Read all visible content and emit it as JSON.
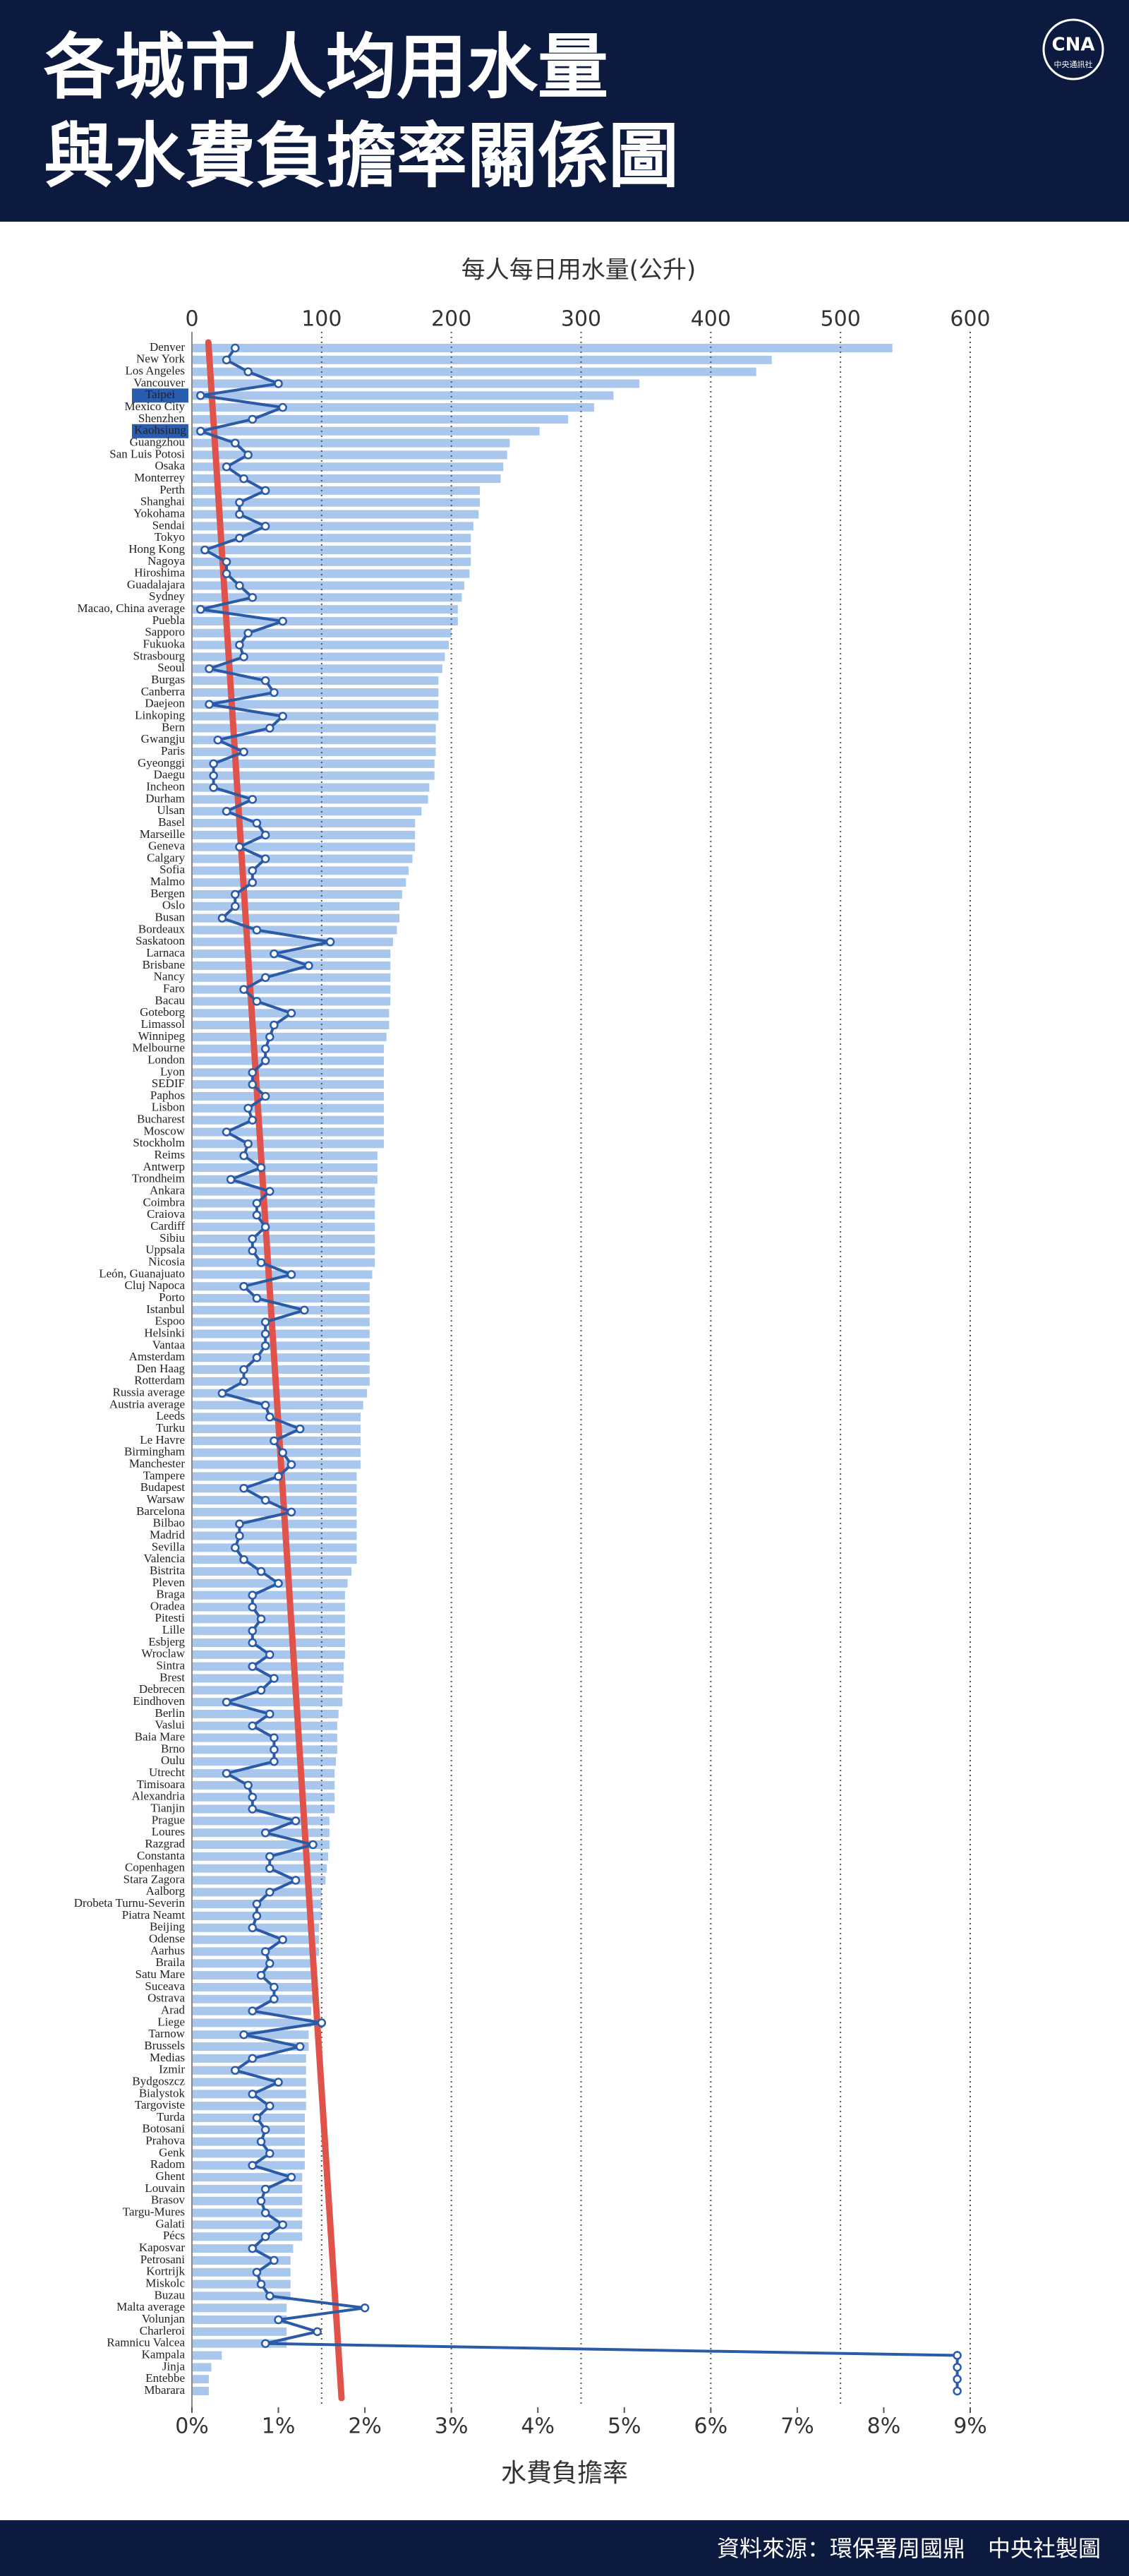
{
  "header": {
    "title_lines": [
      "各城市人均用水量",
      "與水費負擔率關係圖"
    ],
    "logo": "CNA",
    "logo_sub": "中央通訊社"
  },
  "footer": {
    "source": "資料來源：環保署周國鼎　中央社製圖"
  },
  "chart_data": {
    "type": "bar_line",
    "categories": [
      "Denver",
      "New York",
      "Los Angeles",
      "Vancouver",
      "Taipei",
      "Mexico City",
      "Shenzhen",
      "Kaohsiung",
      "Guangzhou",
      "San Luis Potosi",
      "Osaka",
      "Monterrey",
      "Perth",
      "Shanghai",
      "Yokohama",
      "Sendai",
      "Tokyo",
      "Hong Kong",
      "Nagoya",
      "Hiroshima",
      "Guadalajara",
      "Sydney",
      "Macao, China average",
      "Puebla",
      "Sapporo",
      "Fukuoka",
      "Strasbourg",
      "Seoul",
      "Burgas",
      "Canberra",
      "Daejeon",
      "Linkoping",
      "Bern",
      "Gwangju",
      "Paris",
      "Gyeonggi",
      "Daegu",
      "Incheon",
      "Durham",
      "Ulsan",
      "Basel",
      "Marseille",
      "Geneva",
      "Calgary",
      "Sofia",
      "Malmo",
      "Bergen",
      "Oslo",
      "Busan",
      "Bordeaux",
      "Saskatoon",
      "Larnaca",
      "Brisbane",
      "Nancy",
      "Faro",
      "Bacau",
      "Goteborg",
      "Limassol",
      "Winnipeg",
      "Melbourne",
      "London",
      "Lyon",
      "SEDIF",
      "Paphos",
      "Lisbon",
      "Bucharest",
      "Moscow",
      "Stockholm",
      "Reims",
      "Antwerp",
      "Trondheim",
      "Ankara",
      "Coimbra",
      "Craiova",
      "Cardiff",
      "Sibiu",
      "Uppsala",
      "Nicosia",
      "León, Guanajuato",
      "Cluj Napoca",
      "Porto",
      "Istanbul",
      "Espoo",
      "Helsinki",
      "Vantaa",
      "Amsterdam",
      "Den Haag",
      "Rotterdam",
      "Russia average",
      "Austria average",
      "Leeds",
      "Turku",
      "Le Havre",
      "Birmingham",
      "Manchester",
      "Tampere",
      "Budapest",
      "Warsaw",
      "Barcelona",
      "Bilbao",
      "Madrid",
      "Sevilla",
      "Valencia",
      "Bistrita",
      "Pleven",
      "Braga",
      "Oradea",
      "Pitesti",
      "Lille",
      "Esbjerg",
      "Wroclaw",
      "Sintra",
      "Brest",
      "Debrecen",
      "Eindhoven",
      "Berlin",
      "Vaslui",
      "Baia Mare",
      "Brno",
      "Oulu",
      "Utrecht",
      "Timisoara",
      "Alexandria",
      "Tianjin",
      "Prague",
      "Loures",
      "Razgrad",
      "Constanta",
      "Copenhagen",
      "Stara Zagora",
      "Aalborg",
      "Drobeta Turnu-Severin",
      "Piatra Neamt",
      "Beijing",
      "Odense",
      "Aarhus",
      "Braila",
      "Satu Mare",
      "Suceava",
      "Ostrava",
      "Arad",
      "Liege",
      "Tarnow",
      "Brussels",
      "Medias",
      "Izmir",
      "Bydgoszcz",
      "Bialystok",
      "Targoviste",
      "Turda",
      "Botosani",
      "Prahova",
      "Genk",
      "Radom",
      "Ghent",
      "Louvain",
      "Brasov",
      "Targu-Mures",
      "Galati",
      "Pécs",
      "Kaposvar",
      "Petrosani",
      "Kortrijk",
      "Miskolc",
      "Buzau",
      "Malta average",
      "Volunjan",
      "Charleroi",
      "Ramnicu Valcea",
      "Kampala",
      "Jinja",
      "Entebbe",
      "Mbarara"
    ],
    "highlight": [
      "Taipei",
      "Kaohsiung"
    ],
    "water": {
      "axis_label": "每人每日用水量(公升)",
      "color": "#a9c6ec",
      "values": [
        540,
        447,
        435,
        345,
        325,
        310,
        290,
        268,
        245,
        243,
        240,
        238,
        222,
        222,
        221,
        217,
        215,
        215,
        215,
        214,
        210,
        208,
        205,
        205,
        200,
        198,
        195,
        193,
        190,
        190,
        190,
        190,
        188,
        188,
        188,
        187,
        187,
        183,
        182,
        177,
        172,
        172,
        172,
        170,
        167,
        165,
        162,
        160,
        160,
        158,
        155,
        153,
        153,
        153,
        153,
        153,
        152,
        152,
        150,
        148,
        148,
        148,
        148,
        148,
        148,
        148,
        148,
        148,
        143,
        143,
        143,
        141,
        141,
        141,
        141,
        141,
        141,
        141,
        139,
        137,
        137,
        137,
        137,
        137,
        137,
        137,
        137,
        137,
        135,
        132,
        130,
        130,
        130,
        130,
        130,
        127,
        127,
        127,
        127,
        127,
        127,
        127,
        127,
        123,
        120,
        118,
        118,
        118,
        118,
        118,
        118,
        117,
        117,
        116,
        116,
        113,
        112,
        112,
        112,
        111,
        110,
        110,
        110,
        110,
        106,
        106,
        106,
        105,
        104,
        103,
        100,
        100,
        100,
        98,
        98,
        98,
        93,
        93,
        93,
        93,
        92,
        92,
        90,
        90,
        88,
        88,
        88,
        88,
        88,
        87,
        87,
        87,
        87,
        87,
        85,
        85,
        85,
        85,
        85,
        85,
        78,
        76,
        76,
        76,
        76,
        73,
        73,
        73,
        73,
        23,
        15,
        13,
        13
      ]
    },
    "burden": {
      "axis_label": "水費負擔率",
      "color": "#2b5aa6",
      "values": [
        0.5,
        0.4,
        0.65,
        1.0,
        0.1,
        1.05,
        0.7,
        0.1,
        0.5,
        0.65,
        0.4,
        0.6,
        0.85,
        0.55,
        0.55,
        0.85,
        0.55,
        0.15,
        0.4,
        0.4,
        0.55,
        0.7,
        0.1,
        1.05,
        0.65,
        0.55,
        0.6,
        0.2,
        0.85,
        0.95,
        0.2,
        1.05,
        0.9,
        0.3,
        0.6,
        0.25,
        0.25,
        0.25,
        0.7,
        0.4,
        0.75,
        0.85,
        0.55,
        0.85,
        0.7,
        0.7,
        0.5,
        0.5,
        0.35,
        0.75,
        1.6,
        0.95,
        1.35,
        0.85,
        0.6,
        0.75,
        1.15,
        0.95,
        0.9,
        0.85,
        0.85,
        0.7,
        0.7,
        0.85,
        0.65,
        0.7,
        0.4,
        0.65,
        0.6,
        0.8,
        0.45,
        0.9,
        0.75,
        0.75,
        0.85,
        0.7,
        0.7,
        0.8,
        1.15,
        0.6,
        0.75,
        1.3,
        0.85,
        0.85,
        0.85,
        0.75,
        0.6,
        0.6,
        0.35,
        0.85,
        0.9,
        1.25,
        0.95,
        1.05,
        1.15,
        1.0,
        0.6,
        0.85,
        1.15,
        0.55,
        0.55,
        0.5,
        0.6,
        0.8,
        1.0,
        0.7,
        0.7,
        0.8,
        0.7,
        0.7,
        0.9,
        0.7,
        0.95,
        0.8,
        0.4,
        0.9,
        0.7,
        0.95,
        0.95,
        0.95,
        0.4,
        0.65,
        0.7,
        0.7,
        1.2,
        0.85,
        1.4,
        0.9,
        0.9,
        1.2,
        0.9,
        0.75,
        0.75,
        0.7,
        1.05,
        0.85,
        0.9,
        0.8,
        0.95,
        0.95,
        0.7,
        1.5,
        0.6,
        1.25,
        0.7,
        0.5,
        1.0,
        0.7,
        0.9,
        0.75,
        0.85,
        0.8,
        0.9,
        0.7,
        1.15,
        0.85,
        0.8,
        0.85,
        1.05,
        0.85,
        0.7,
        0.95,
        0.75,
        0.8,
        0.9,
        2.0,
        1.0,
        1.45,
        0.85,
        8.85,
        8.85,
        8.85,
        8.85
      ]
    },
    "trend": {
      "color": "#e0534a",
      "values": [
        0.19,
        1.73
      ]
    },
    "xlim": [
      0,
      600
    ],
    "xticks": [
      0,
      100,
      200,
      300,
      400,
      500,
      600
    ],
    "x2lim": [
      0,
      9
    ],
    "x2ticks": [
      {
        "value": 0,
        "label": "0%"
      },
      {
        "value": 1,
        "label": "1%"
      },
      {
        "value": 2,
        "label": "2%"
      },
      {
        "value": 3,
        "label": "3%"
      },
      {
        "value": 4,
        "label": "4%"
      },
      {
        "value": 5,
        "label": "5%"
      },
      {
        "value": 6,
        "label": "6%"
      },
      {
        "value": 7,
        "label": "7%"
      },
      {
        "value": 8,
        "label": "8%"
      },
      {
        "value": 9,
        "label": "9%"
      }
    ],
    "grid": true
  }
}
